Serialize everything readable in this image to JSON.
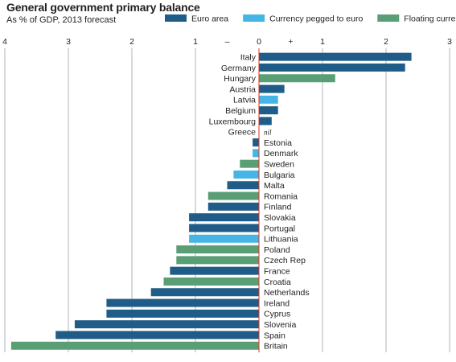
{
  "chart_data": {
    "type": "bar",
    "orientation": "horizontal",
    "title": "General government primary balance",
    "subtitle": "As % of GDP, 2013 forecast",
    "xlim": [
      -4,
      3
    ],
    "ticks": [
      {
        "value": -4,
        "label": "4"
      },
      {
        "value": -3,
        "label": "3"
      },
      {
        "value": -2,
        "label": "2"
      },
      {
        "value": -1,
        "label": "1"
      },
      {
        "value": -0.5,
        "label": "–"
      },
      {
        "value": 0,
        "label": "0"
      },
      {
        "value": 0.5,
        "label": "+"
      },
      {
        "value": 1,
        "label": "1"
      },
      {
        "value": 2,
        "label": "2"
      },
      {
        "value": 3,
        "label": "3"
      }
    ],
    "grid": true,
    "legend": {
      "placement": "top",
      "entries": [
        {
          "key": "euro",
          "label": "Euro area",
          "color": "#1f5c87"
        },
        {
          "key": "pegged",
          "label": "Currency pegged to euro",
          "color": "#45b5e6"
        },
        {
          "key": "floating",
          "label": "Floating currency",
          "color": "#5a9e76"
        }
      ]
    },
    "nil_label": "nil",
    "countries": [
      {
        "name": "Italy",
        "value": 2.4,
        "group": "euro"
      },
      {
        "name": "Germany",
        "value": 2.3,
        "group": "euro"
      },
      {
        "name": "Hungary",
        "value": 1.2,
        "group": "floating"
      },
      {
        "name": "Austria",
        "value": 0.4,
        "group": "euro"
      },
      {
        "name": "Latvia",
        "value": 0.3,
        "group": "pegged"
      },
      {
        "name": "Belgium",
        "value": 0.3,
        "group": "euro"
      },
      {
        "name": "Luxembourg",
        "value": 0.2,
        "group": "euro"
      },
      {
        "name": "Greece",
        "value": 0,
        "group": "euro",
        "nil": true
      },
      {
        "name": "Estonia",
        "value": -0.1,
        "group": "euro"
      },
      {
        "name": "Denmark",
        "value": -0.1,
        "group": "pegged"
      },
      {
        "name": "Sweden",
        "value": -0.3,
        "group": "floating"
      },
      {
        "name": "Bulgaria",
        "value": -0.4,
        "group": "pegged"
      },
      {
        "name": "Malta",
        "value": -0.5,
        "group": "euro"
      },
      {
        "name": "Romania",
        "value": -0.8,
        "group": "floating"
      },
      {
        "name": "Finland",
        "value": -0.8,
        "group": "euro"
      },
      {
        "name": "Slovakia",
        "value": -1.1,
        "group": "euro"
      },
      {
        "name": "Portugal",
        "value": -1.1,
        "group": "euro"
      },
      {
        "name": "Lithuania",
        "value": -1.1,
        "group": "pegged"
      },
      {
        "name": "Poland",
        "value": -1.3,
        "group": "floating"
      },
      {
        "name": "Czech Rep",
        "value": -1.3,
        "group": "floating"
      },
      {
        "name": "France",
        "value": -1.4,
        "group": "euro"
      },
      {
        "name": "Croatia",
        "value": -1.5,
        "group": "floating"
      },
      {
        "name": "Netherlands",
        "value": -1.7,
        "group": "euro"
      },
      {
        "name": "Ireland",
        "value": -2.4,
        "group": "euro"
      },
      {
        "name": "Cyprus",
        "value": -2.4,
        "group": "euro"
      },
      {
        "name": "Slovenia",
        "value": -2.9,
        "group": "euro"
      },
      {
        "name": "Spain",
        "value": -3.2,
        "group": "euro"
      },
      {
        "name": "Britain",
        "value": -3.9,
        "group": "floating"
      }
    ]
  }
}
